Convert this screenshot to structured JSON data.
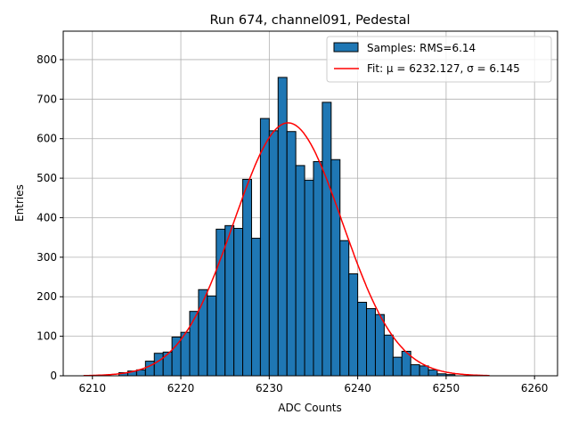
{
  "chart_data": {
    "type": "bar",
    "title": "Run 674, channel091, Pedestal",
    "xlabel": "ADC Counts",
    "ylabel": "Entries",
    "xlim": [
      6206.7,
      6262.6
    ],
    "ylim": [
      0,
      872
    ],
    "grid": true,
    "xticks": [
      6210,
      6220,
      6230,
      6240,
      6250,
      6260
    ],
    "yticks": [
      0,
      100,
      200,
      300,
      400,
      500,
      600,
      700,
      800
    ],
    "bin_width": 1,
    "bin_starts": [
      6213,
      6214,
      6215,
      6216,
      6217,
      6218,
      6219,
      6220,
      6221,
      6222,
      6223,
      6224,
      6225,
      6226,
      6227,
      6228,
      6229,
      6230,
      6231,
      6232,
      6233,
      6234,
      6235,
      6236,
      6237,
      6238,
      6239,
      6240,
      6241,
      6242,
      6243,
      6244,
      6245,
      6246,
      6247,
      6248,
      6249,
      6250
    ],
    "values": [
      8,
      12,
      15,
      37,
      57,
      60,
      98,
      110,
      163,
      218,
      202,
      371,
      380,
      373,
      497,
      348,
      651,
      620,
      755,
      618,
      532,
      495,
      542,
      692,
      547,
      342,
      258,
      186,
      170,
      155,
      103,
      47,
      62,
      28,
      25,
      15,
      5,
      3
    ],
    "fit": {
      "mu": 6232.127,
      "sigma": 6.145,
      "amplitude": 640,
      "x_range": [
        6209,
        6255
      ]
    },
    "legend": {
      "placement": "top-right",
      "entries": [
        {
          "label": "Samples: RMS=6.14",
          "color": "#1f77b4"
        },
        {
          "label": "Fit: μ = 6232.127, σ = 6.145",
          "color": "#ff0000"
        }
      ]
    }
  }
}
